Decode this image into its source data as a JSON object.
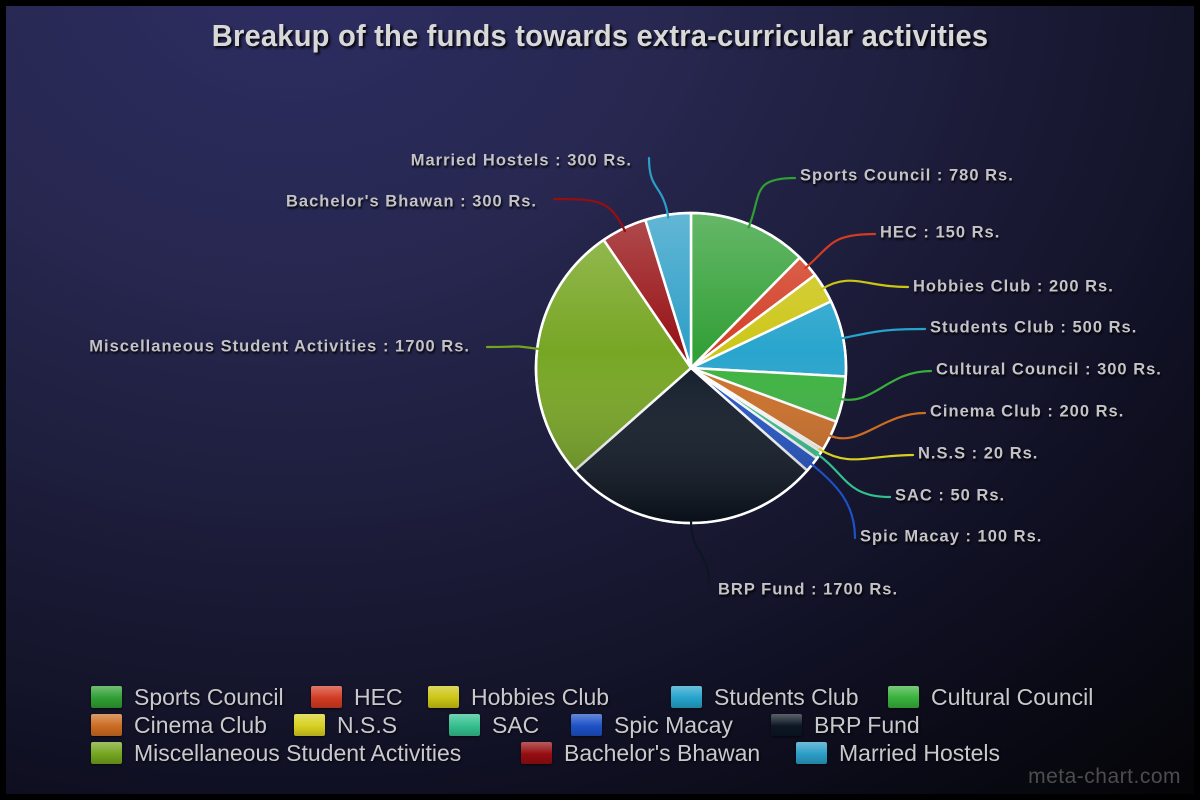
{
  "title": "Breakup of the funds towards extra-curricular activities",
  "watermark": "meta-chart.com",
  "chart_data": {
    "type": "pie",
    "title": "Breakup of the funds towards extra-curricular activities",
    "unit": "Rs.",
    "callout_format": "{label} : {value} Rs.",
    "legend_position": "bottom",
    "slices": [
      {
        "label": "Sports Council",
        "value": 780,
        "color": "#2f9e33"
      },
      {
        "label": "HEC",
        "value": 150,
        "color": "#d23b22"
      },
      {
        "label": "Hobbies Club",
        "value": 200,
        "color": "#ccc514"
      },
      {
        "label": "Students Club",
        "value": 500,
        "color": "#25a3cc"
      },
      {
        "label": "Cultural Council",
        "value": 300,
        "color": "#38b13c"
      },
      {
        "label": "Cinema Club",
        "value": 200,
        "color": "#cc6c22"
      },
      {
        "label": "N.S.S",
        "value": 20,
        "color": "#d8d020"
      },
      {
        "label": "SAC",
        "value": 50,
        "color": "#33bf8e"
      },
      {
        "label": "Spic Macay",
        "value": 100,
        "color": "#1d51c6"
      },
      {
        "label": "BRP Fund",
        "value": 1700,
        "color": "#0c1624"
      },
      {
        "label": "Miscellaneous Student Activities",
        "value": 1700,
        "color": "#74a41f"
      },
      {
        "label": "Bachelor's Bhawan",
        "value": 300,
        "color": "#950e11"
      },
      {
        "label": "Married Hostels",
        "value": 300,
        "color": "#2b9dc6"
      }
    ],
    "legend_rows": [
      [
        "Sports Council",
        "HEC",
        "Hobbies Club",
        "Students Club",
        "Cultural Council"
      ],
      [
        "Cinema Club",
        "N.S.S",
        "SAC",
        "Spic Macay",
        "BRP Fund"
      ],
      [
        "Miscellaneous Student Activities",
        "Bachelor's Bhawan",
        "Married Hostels"
      ]
    ]
  },
  "theme": {
    "background_top": "#2d2d63",
    "background_bottom": "#020204",
    "label_text": "#c3c3c7",
    "legend_text": "#c9c9cd",
    "slice_border": "#ffffff"
  }
}
